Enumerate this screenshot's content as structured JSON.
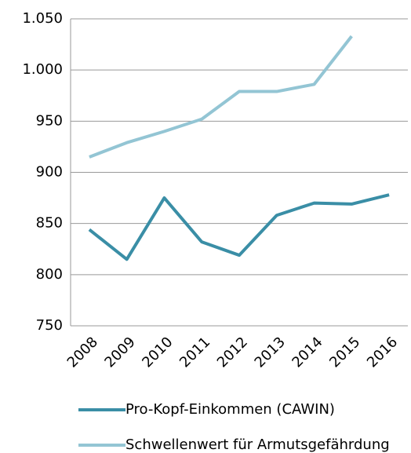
{
  "chart_data": {
    "type": "line",
    "categories": [
      "2008",
      "2009",
      "2010",
      "2011",
      "2012",
      "2013",
      "2014",
      "2015",
      "2016"
    ],
    "series": [
      {
        "name": "Pro-Kopf-Einkommen (CAWIN)",
        "color": "#3a8ea6",
        "values": [
          844,
          815,
          875,
          832,
          819,
          858,
          870,
          869,
          878
        ]
      },
      {
        "name": "Schwellenwert für Armutsgefährdung",
        "color": "#93c5d4",
        "values": [
          915,
          929,
          940,
          952,
          979,
          979,
          986,
          1033,
          null
        ]
      }
    ],
    "ylim": [
      750,
      1050
    ],
    "yticks": [
      750,
      800,
      850,
      900,
      950,
      {
        "value": 1000,
        "label": "1.000"
      },
      {
        "value": 1050,
        "label": "1.050"
      }
    ],
    "grid": true
  }
}
